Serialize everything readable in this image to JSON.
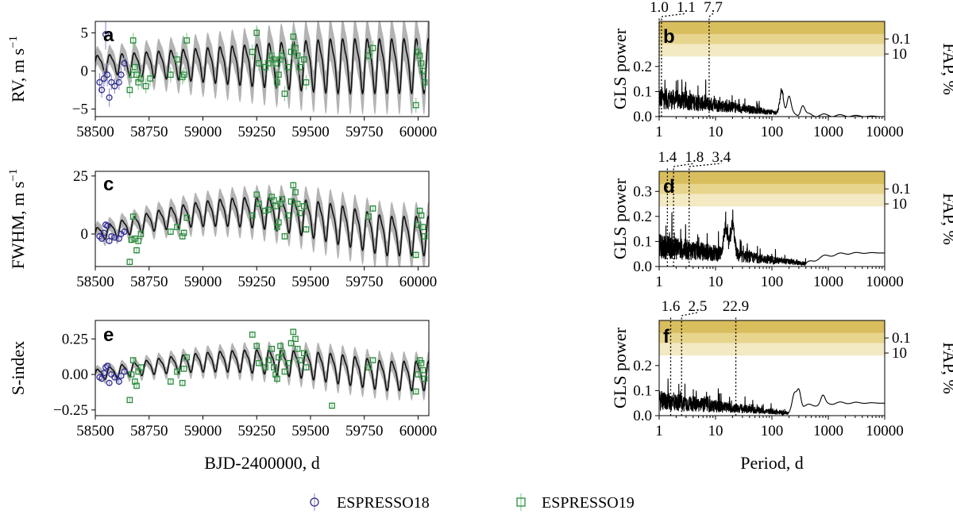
{
  "colors": {
    "espresso18": "#2e2a8f",
    "espresso19": "#2b8a3e",
    "model": "#111111",
    "band": "#b3b3b3",
    "fap_levels": [
      "#f3e9c2",
      "#e7d48d",
      "#d9be5e"
    ]
  },
  "legend": {
    "items": [
      {
        "label": "ESPRESSO18",
        "marker": "circle",
        "color": "#2e2a8f"
      },
      {
        "label": "ESPRESSO19",
        "marker": "square",
        "color": "#2b8a3e"
      }
    ]
  },
  "chart_data": [
    {
      "panel": "a",
      "type": "line",
      "ylabel": "RV, m s",
      "ylabel_exp": "−1",
      "xlabel": "",
      "xlim": [
        58500,
        60050
      ],
      "ylim": [
        -6,
        6.5
      ],
      "xticks": [
        58500,
        58750,
        59000,
        59250,
        59500,
        59750,
        60000
      ],
      "xticklabels": [
        "58500",
        "58750",
        "59000",
        "59250",
        "59500",
        "59750",
        "60000"
      ],
      "yticks": [
        -5,
        0,
        5
      ],
      "yticklabels": [
        "−5",
        "0",
        "5"
      ],
      "model": {
        "period": 57,
        "trend_base": 1.0,
        "trend_amp": 0.0,
        "osc_start": 1.2,
        "osc_end": 3.8,
        "band": 2.0
      },
      "series": [
        {
          "name": "ESPRESSO18",
          "marker": "circle",
          "x": [
            58520,
            58530,
            58540,
            58548,
            58556,
            58565,
            58575,
            58590,
            58610,
            58620,
            58635
          ],
          "y": [
            -1.5,
            -2.5,
            -1.0,
            4.8,
            -0.5,
            -3.5,
            -1.5,
            -2.0,
            -1.5,
            -0.5,
            1.0
          ],
          "err": [
            1.2,
            1.0,
            1.1,
            2.0,
            1.5,
            1.2,
            1.0,
            1.0,
            1.0,
            1.1,
            1.0
          ]
        },
        {
          "name": "ESPRESSO19",
          "marker": "square",
          "x": [
            58660,
            58668,
            58676,
            58684,
            58692,
            58700,
            58712,
            58735,
            58755,
            58850,
            58880,
            58905,
            58912,
            58925,
            59230,
            59250,
            59260,
            59290,
            59305,
            59320,
            59330,
            59338,
            59345,
            59352,
            59360,
            59368,
            59380,
            59395,
            59410,
            59420,
            59430,
            59440,
            59450,
            59470,
            59480,
            59770,
            59790,
            59990,
            60000,
            60008,
            60015,
            60022,
            60030
          ],
          "y": [
            -2.5,
            -0.5,
            4.0,
            0.5,
            -0.5,
            -1.5,
            -1.0,
            -2.0,
            -1.0,
            -0.5,
            1.5,
            -0.8,
            -0.5,
            4.0,
            2.5,
            5.0,
            1.0,
            0.5,
            1.0,
            2.0,
            1.5,
            1.0,
            -1.5,
            -0.5,
            1.5,
            2.0,
            -3.0,
            0.5,
            2.5,
            4.5,
            3.0,
            2.0,
            0.5,
            1.5,
            -1.5,
            2.0,
            3.0,
            -4.5,
            2.5,
            2.0,
            1.0,
            0.0,
            -1.5
          ],
          "err": [
            1,
            1,
            1,
            1,
            1,
            1,
            1,
            1,
            1,
            1,
            1,
            1,
            1,
            1,
            1,
            1,
            1,
            1,
            1,
            1,
            1,
            1,
            1,
            1,
            1,
            1,
            1,
            1,
            1,
            1,
            1,
            1,
            1,
            1,
            1,
            1,
            1,
            1,
            1,
            1,
            1,
            1,
            1
          ]
        }
      ]
    },
    {
      "panel": "b",
      "type": "line",
      "xscale": "log",
      "ylabel": "GLS power",
      "ylabel2": "FAP, %",
      "xlabel": "",
      "xlim": [
        1,
        10000
      ],
      "ylim": [
        0,
        0.38
      ],
      "xticks": [
        1,
        10,
        100,
        1000,
        10000
      ],
      "xticklabels": [
        "1",
        "10",
        "100",
        "1000",
        "10000"
      ],
      "yticks": [
        0.0,
        0.1,
        0.2
      ],
      "yticklabels": [
        "0.0",
        "0.1",
        "0.2"
      ],
      "fap_levels": [
        0.24,
        0.29,
        0.33
      ],
      "fap_ticks": [
        0.31,
        0.25
      ],
      "fap_ticklabels": [
        "0.1",
        "10"
      ],
      "peaks": [
        1.0,
        1.1,
        7.7
      ],
      "peak_labels": [
        "1.0",
        "1.1",
        "7.7"
      ],
      "gls": {
        "base": 0.03,
        "noise": 0.09,
        "noise_end_log": 2.2,
        "bumps": [
          [
            150,
            0.09
          ],
          [
            200,
            0.07
          ],
          [
            350,
            0.04
          ]
        ],
        "tail": 0.0
      }
    },
    {
      "panel": "c",
      "type": "line",
      "ylabel": "FWHM, m s",
      "ylabel_exp": "−1",
      "xlabel": "",
      "xlim": [
        58500,
        60050
      ],
      "ylim": [
        -14,
        27
      ],
      "xticks": [
        58500,
        58750,
        59000,
        59250,
        59500,
        59750,
        60000
      ],
      "xticklabels": [
        "58500",
        "58750",
        "59000",
        "59250",
        "59500",
        "59750",
        "60000"
      ],
      "yticks": [
        0,
        25
      ],
      "yticklabels": [
        "0",
        "25"
      ],
      "model": {
        "period": 57,
        "trend_base": 0.0,
        "trend_amp": 10.0,
        "osc_start": 3.0,
        "osc_end": 9.0,
        "band": 4.5
      },
      "series": [
        {
          "name": "ESPRESSO18",
          "marker": "circle",
          "x": [
            58520,
            58530,
            58540,
            58548,
            58556,
            58565,
            58575,
            58590,
            58610,
            58620,
            58635
          ],
          "y": [
            -1.0,
            -2.0,
            0.5,
            4.0,
            3.5,
            -3.0,
            -1.0,
            -1.5,
            -2.0,
            0.0,
            1.0
          ],
          "err": [
            1,
            1,
            1,
            1,
            1,
            1,
            1,
            1,
            1,
            1,
            1
          ]
        },
        {
          "name": "ESPRESSO19",
          "marker": "square",
          "x": [
            58660,
            58668,
            58676,
            58684,
            58692,
            58700,
            58712,
            58850,
            58880,
            58905,
            58912,
            58925,
            59230,
            59250,
            59260,
            59290,
            59305,
            59320,
            59330,
            59338,
            59345,
            59352,
            59360,
            59368,
            59380,
            59395,
            59410,
            59420,
            59430,
            59440,
            59450,
            59470,
            59480,
            59770,
            59790,
            59990,
            60000,
            60008,
            60015,
            60022,
            60030
          ],
          "y": [
            -12.0,
            -2.5,
            7.5,
            -2.0,
            -7.0,
            -3.0,
            0.0,
            1.0,
            3.0,
            -1.0,
            0.5,
            7.0,
            8.0,
            17.0,
            13.0,
            10.0,
            10.5,
            16.0,
            14.5,
            12.0,
            3.0,
            5.0,
            13.0,
            15.0,
            -1.0,
            8.0,
            14.0,
            21.0,
            18.0,
            13.0,
            9.0,
            12.0,
            2.0,
            7.5,
            11.0,
            -9.0,
            4.0,
            10.0,
            8.0,
            3.0,
            -1.0
          ],
          "err": [
            1.5,
            1.5,
            1.5,
            1.5,
            1.5,
            1.5,
            1.5,
            1.5,
            1.5,
            1.5,
            1.5,
            1.5,
            1.5,
            1.5,
            1.5,
            1.5,
            1.5,
            1.5,
            1.5,
            1.5,
            1.5,
            1.5,
            1.5,
            1.5,
            1.5,
            1.5,
            1.5,
            1.5,
            1.5,
            1.5,
            1.5,
            1.5,
            1.5,
            1.5,
            1.5,
            1.5,
            1.5,
            1.5,
            1.5,
            1.5,
            1.5
          ]
        }
      ]
    },
    {
      "panel": "d",
      "type": "line",
      "xscale": "log",
      "ylabel": "GLS power",
      "ylabel2": "FAP, %",
      "xlabel": "",
      "xlim": [
        1,
        10000
      ],
      "ylim": [
        0,
        0.38
      ],
      "xticks": [
        1,
        10,
        100,
        1000,
        10000
      ],
      "xticklabels": [
        "1",
        "10",
        "100",
        "1000",
        "10000"
      ],
      "yticks": [
        0.0,
        0.1,
        0.2,
        0.3
      ],
      "yticklabels": [
        "0.0",
        "0.1",
        "0.2",
        "0.3"
      ],
      "fap_levels": [
        0.24,
        0.29,
        0.33
      ],
      "fap_ticks": [
        0.31,
        0.25
      ],
      "fap_ticklabels": [
        "0.1",
        "10"
      ],
      "peaks": [
        1.4,
        1.8,
        3.4
      ],
      "peak_labels": [
        "1.4",
        "1.8",
        "3.4"
      ],
      "gls": {
        "base": 0.03,
        "noise": 0.1,
        "noise_end_log": 2.6,
        "bumps": [
          [
            20,
            0.12
          ],
          [
            15,
            0.1
          ]
        ],
        "tail": 0.055
      }
    },
    {
      "panel": "e",
      "type": "line",
      "ylabel": "S-index",
      "xlabel": "BJD-2400000, d",
      "xlim": [
        58500,
        60050
      ],
      "ylim": [
        -0.29,
        0.38
      ],
      "xticks": [
        58500,
        58750,
        59000,
        59250,
        59500,
        59750,
        60000
      ],
      "xticklabels": [
        "58500",
        "58750",
        "59000",
        "59250",
        "59500",
        "59750",
        "60000"
      ],
      "yticks": [
        -0.25,
        0.0,
        0.25
      ],
      "yticklabels": [
        "−0.25",
        "0.00",
        "0.25"
      ],
      "model": {
        "period": 57,
        "trend_base": 0.0,
        "trend_amp": 0.1,
        "osc_start": 0.04,
        "osc_end": 0.11,
        "band": 0.05
      },
      "series": [
        {
          "name": "ESPRESSO18",
          "marker": "circle",
          "x": [
            58520,
            58530,
            58540,
            58548,
            58556,
            58565,
            58575,
            58590,
            58610,
            58620,
            58635
          ],
          "y": [
            -0.02,
            -0.03,
            0.01,
            0.05,
            0.06,
            -0.06,
            0.0,
            -0.02,
            -0.05,
            -0.01,
            0.02
          ],
          "err": [
            0.015,
            0.015,
            0.015,
            0.015,
            0.015,
            0.015,
            0.015,
            0.015,
            0.015,
            0.015,
            0.015
          ]
        },
        {
          "name": "ESPRESSO19",
          "marker": "square",
          "x": [
            58660,
            58668,
            58676,
            58684,
            58692,
            58700,
            58712,
            58850,
            58880,
            58905,
            58912,
            58925,
            59230,
            59250,
            59260,
            59290,
            59305,
            59320,
            59330,
            59338,
            59345,
            59352,
            59360,
            59368,
            59380,
            59395,
            59410,
            59420,
            59430,
            59440,
            59450,
            59470,
            59480,
            59600,
            59770,
            59790,
            59990,
            60000,
            60008,
            60015,
            60022,
            60030
          ],
          "y": [
            -0.18,
            0.0,
            0.1,
            -0.05,
            -0.08,
            0.02,
            0.05,
            -0.05,
            0.02,
            -0.06,
            0.04,
            0.12,
            0.28,
            0.2,
            0.08,
            0.05,
            0.1,
            0.18,
            0.05,
            0.0,
            -0.03,
            0.12,
            0.2,
            0.15,
            0.02,
            0.08,
            0.22,
            0.3,
            0.25,
            0.18,
            0.1,
            0.15,
            0.05,
            -0.22,
            0.05,
            0.1,
            -0.12,
            0.0,
            0.1,
            0.08,
            0.03,
            -0.03
          ],
          "err": [
            0.02,
            0.02,
            0.02,
            0.02,
            0.02,
            0.02,
            0.02,
            0.02,
            0.02,
            0.02,
            0.02,
            0.02,
            0.02,
            0.02,
            0.02,
            0.02,
            0.02,
            0.02,
            0.02,
            0.02,
            0.02,
            0.02,
            0.02,
            0.02,
            0.02,
            0.02,
            0.02,
            0.02,
            0.02,
            0.02,
            0.02,
            0.02,
            0.02,
            0.02,
            0.02,
            0.02,
            0.02,
            0.02,
            0.02,
            0.02,
            0.02,
            0.02
          ]
        }
      ]
    },
    {
      "panel": "f",
      "type": "line",
      "xscale": "log",
      "ylabel": "GLS power",
      "ylabel2": "FAP, %",
      "xlabel": "Period, d",
      "xlim": [
        1,
        10000
      ],
      "ylim": [
        0,
        0.38
      ],
      "xticks": [
        1,
        10,
        100,
        1000,
        10000
      ],
      "xticklabels": [
        "1",
        "10",
        "100",
        "1000",
        "10000"
      ],
      "yticks": [
        0.0,
        0.1,
        0.2
      ],
      "yticklabels": [
        "0.0",
        "0.1",
        "0.2"
      ],
      "fap_levels": [
        0.24,
        0.29,
        0.33
      ],
      "fap_ticks": [
        0.31,
        0.25
      ],
      "fap_ticklabels": [
        "0.1",
        "10"
      ],
      "peaks": [
        1.6,
        2.5,
        22.9
      ],
      "peak_labels": [
        "1.6",
        "2.5",
        "22.9"
      ],
      "gls": {
        "base": 0.02,
        "noise": 0.08,
        "noise_end_log": 2.3,
        "bumps": [
          [
            250,
            0.06
          ],
          [
            300,
            0.08
          ],
          [
            800,
            0.03
          ]
        ],
        "tail": 0.05
      }
    }
  ]
}
